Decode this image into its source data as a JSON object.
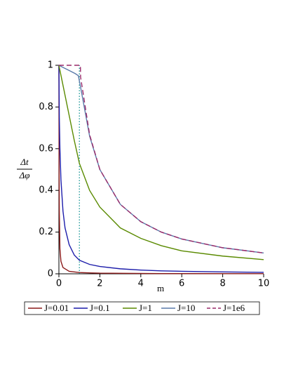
{
  "chart_data": {
    "type": "line",
    "xlabel": "m",
    "ylabel": {
      "numerator": "Δt",
      "denominator": "Δφ"
    },
    "xlim": [
      0,
      10
    ],
    "ylim": [
      0,
      1
    ],
    "xticks": [
      0,
      2,
      4,
      6,
      8,
      10
    ],
    "yticks": [
      0,
      0.2,
      0.4,
      0.6,
      0.8,
      1
    ],
    "vline": {
      "x": 1,
      "color": "#008b8b"
    },
    "legend": "bottom",
    "series": [
      {
        "name": "J=0.01",
        "color": "#8b1a1a",
        "dash": false,
        "x": [
          0,
          0.01,
          0.02,
          0.05,
          0.1,
          0.2,
          0.5,
          1,
          2,
          5,
          10
        ],
        "values": [
          1,
          0.5,
          0.3,
          0.12,
          0.06,
          0.03,
          0.012,
          0.006,
          0.003,
          0.0012,
          0.0006
        ]
      },
      {
        "name": "J=0.1",
        "color": "#1c1caa",
        "dash": false,
        "x": [
          0,
          0.02,
          0.05,
          0.1,
          0.2,
          0.3,
          0.5,
          0.75,
          1,
          1.5,
          2,
          3,
          4,
          5,
          6,
          8,
          10
        ],
        "values": [
          1,
          0.75,
          0.6,
          0.45,
          0.3,
          0.22,
          0.14,
          0.09,
          0.065,
          0.045,
          0.035,
          0.024,
          0.018,
          0.014,
          0.012,
          0.009,
          0.007
        ]
      },
      {
        "name": "J=1",
        "color": "#5a8a00",
        "dash": false,
        "x": [
          0,
          0.25,
          0.5,
          0.75,
          1,
          1.5,
          2,
          3,
          4,
          5,
          6,
          8,
          10
        ],
        "values": [
          1,
          0.88,
          0.76,
          0.64,
          0.53,
          0.4,
          0.32,
          0.22,
          0.17,
          0.135,
          0.11,
          0.085,
          0.068
        ]
      },
      {
        "name": "J=10",
        "color": "#5a7aaa",
        "dash": false,
        "x": [
          0,
          0.2,
          0.5,
          0.8,
          0.95,
          1.05,
          1.5,
          2,
          3,
          4,
          5,
          6,
          8,
          10
        ],
        "values": [
          1,
          0.99,
          0.975,
          0.96,
          0.95,
          0.9,
          0.66,
          0.5,
          0.333,
          0.25,
          0.2,
          0.167,
          0.125,
          0.1
        ]
      },
      {
        "name": "J=1e6",
        "color": "#9a2a6a",
        "dash": true,
        "x": [
          0,
          0.5,
          1.05,
          1.06,
          1.5,
          2,
          3,
          4,
          5,
          6,
          8,
          10
        ],
        "values": [
          1,
          1,
          1,
          0.943,
          0.667,
          0.5,
          0.333,
          0.25,
          0.2,
          0.167,
          0.125,
          0.1
        ]
      }
    ]
  }
}
